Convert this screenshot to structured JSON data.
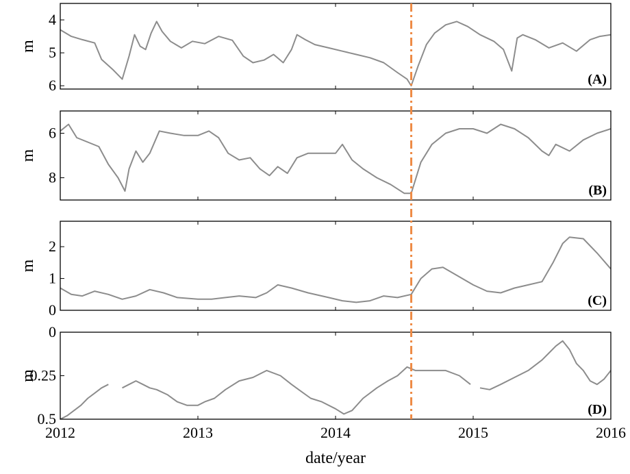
{
  "chart_data": {
    "type": "line",
    "xlabel": "date/year",
    "xlim": [
      2012,
      2016
    ],
    "x_ticks": [
      "2012",
      "2013",
      "2014",
      "2015",
      "2016"
    ],
    "x_tick_values": [
      2012,
      2013,
      2014,
      2015,
      2016
    ],
    "event_line_x": 2014.55,
    "colors": {
      "series": "#8c8c8c",
      "event_line": "#ee8a45",
      "axes": "#000000"
    },
    "panels": [
      {
        "label": "(A)",
        "ylabel": "m",
        "ylim": [
          6.1,
          3.5
        ],
        "y_inverted": true,
        "y_ticks": [
          "4",
          "5",
          "6"
        ],
        "y_tick_values": [
          4,
          5,
          6
        ],
        "series": {
          "x": [
            2012.0,
            2012.08,
            2012.16,
            2012.25,
            2012.3,
            2012.38,
            2012.45,
            2012.5,
            2012.54,
            2012.58,
            2012.62,
            2012.66,
            2012.7,
            2012.74,
            2012.8,
            2012.88,
            2012.96,
            2013.05,
            2013.15,
            2013.25,
            2013.33,
            2013.4,
            2013.48,
            2013.55,
            2013.62,
            2013.68,
            2013.72,
            2013.78,
            2013.85,
            2013.95,
            2014.05,
            2014.15,
            2014.25,
            2014.35,
            2014.45,
            2014.52,
            2014.55,
            2014.6,
            2014.66,
            2014.72,
            2014.8,
            2014.88,
            2014.96,
            2015.05,
            2015.15,
            2015.22,
            2015.28,
            2015.32,
            2015.36,
            2015.45,
            2015.55,
            2015.65,
            2015.75,
            2015.85,
            2015.92,
            2016.0
          ],
          "y": [
            4.3,
            4.5,
            4.6,
            4.7,
            5.2,
            5.5,
            5.8,
            5.1,
            4.45,
            4.8,
            4.9,
            4.4,
            4.05,
            4.35,
            4.65,
            4.85,
            4.65,
            4.72,
            4.5,
            4.62,
            5.1,
            5.3,
            5.22,
            5.05,
            5.3,
            4.9,
            4.45,
            4.6,
            4.75,
            4.85,
            4.95,
            5.05,
            5.15,
            5.3,
            5.6,
            5.8,
            6.0,
            5.4,
            4.75,
            4.4,
            4.15,
            4.05,
            4.2,
            4.45,
            4.65,
            4.9,
            5.55,
            4.55,
            4.45,
            4.6,
            4.85,
            4.7,
            4.95,
            4.6,
            4.5,
            4.45
          ]
        }
      },
      {
        "label": "(B)",
        "ylabel": "m",
        "ylim": [
          9.0,
          5.0
        ],
        "y_inverted": true,
        "y_ticks": [
          "6",
          "8"
        ],
        "y_tick_values": [
          6,
          8
        ],
        "series": {
          "x": [
            2012.0,
            2012.06,
            2012.12,
            2012.2,
            2012.28,
            2012.35,
            2012.42,
            2012.47,
            2012.5,
            2012.55,
            2012.6,
            2012.65,
            2012.72,
            2012.8,
            2012.9,
            2013.0,
            2013.08,
            2013.15,
            2013.22,
            2013.3,
            2013.38,
            2013.45,
            2013.52,
            2013.58,
            2013.65,
            2013.72,
            2013.8,
            2013.9,
            2014.0,
            2014.05,
            2014.12,
            2014.2,
            2014.3,
            2014.4,
            2014.5,
            2014.55,
            2014.62,
            2014.7,
            2014.8,
            2014.9,
            2015.0,
            2015.1,
            2015.2,
            2015.3,
            2015.4,
            2015.5,
            2015.55,
            2015.6,
            2015.7,
            2015.8,
            2015.9,
            2016.0
          ],
          "y": [
            5.9,
            5.6,
            6.2,
            6.4,
            6.6,
            7.4,
            8.0,
            8.6,
            7.6,
            6.8,
            7.3,
            6.9,
            5.9,
            6.0,
            6.1,
            6.1,
            5.9,
            6.2,
            6.9,
            7.2,
            7.1,
            7.6,
            7.9,
            7.5,
            7.8,
            7.1,
            6.9,
            6.9,
            6.9,
            6.5,
            7.2,
            7.6,
            8.0,
            8.3,
            8.7,
            8.7,
            7.3,
            6.5,
            6.0,
            5.8,
            5.8,
            6.0,
            5.6,
            5.8,
            6.2,
            6.8,
            7.0,
            6.5,
            6.8,
            6.3,
            6.0,
            5.8
          ]
        }
      },
      {
        "label": "(C)",
        "ylabel": "m",
        "ylim": [
          0,
          2.8
        ],
        "y_inverted": false,
        "y_ticks": [
          "0",
          "1",
          "2"
        ],
        "y_tick_values": [
          0,
          1,
          2
        ],
        "series": {
          "x": [
            2012.0,
            2012.08,
            2012.16,
            2012.25,
            2012.35,
            2012.45,
            2012.55,
            2012.65,
            2012.75,
            2012.85,
            2013.0,
            2013.1,
            2013.2,
            2013.3,
            2013.42,
            2013.5,
            2013.58,
            2013.68,
            2013.8,
            2013.95,
            2014.05,
            2014.15,
            2014.25,
            2014.35,
            2014.45,
            2014.55,
            2014.62,
            2014.7,
            2014.78,
            2014.88,
            2015.0,
            2015.1,
            2015.2,
            2015.3,
            2015.4,
            2015.5,
            2015.58,
            2015.65,
            2015.7,
            2015.8,
            2015.9,
            2016.0
          ],
          "y": [
            0.7,
            0.5,
            0.45,
            0.6,
            0.5,
            0.35,
            0.45,
            0.65,
            0.55,
            0.4,
            0.35,
            0.35,
            0.4,
            0.45,
            0.4,
            0.55,
            0.8,
            0.7,
            0.55,
            0.4,
            0.3,
            0.25,
            0.3,
            0.45,
            0.4,
            0.5,
            1.0,
            1.3,
            1.35,
            1.1,
            0.8,
            0.6,
            0.55,
            0.7,
            0.8,
            0.9,
            1.5,
            2.1,
            2.3,
            2.25,
            1.8,
            1.3
          ]
        }
      },
      {
        "label": "(D)",
        "ylabel": "m",
        "ylim": [
          0.5,
          0
        ],
        "y_inverted": true,
        "y_ticks": [
          "0",
          "0.25",
          "0.5"
        ],
        "y_tick_values": [
          0,
          0.25,
          0.5
        ],
        "series": {
          "x": [
            2012.0,
            2012.05,
            2012.1,
            2012.15,
            2012.2,
            2012.25,
            2012.3,
            2012.35,
            null,
            2012.45,
            2012.5,
            2012.55,
            2012.6,
            2012.65,
            2012.7,
            2012.78,
            2012.85,
            2012.92,
            2013.0,
            2013.05,
            2013.12,
            2013.2,
            2013.3,
            2013.4,
            2013.5,
            2013.6,
            2013.68,
            2013.75,
            2013.82,
            2013.9,
            2014.0,
            2014.06,
            2014.12,
            2014.2,
            2014.3,
            2014.38,
            2014.45,
            2014.52,
            2014.58,
            2014.65,
            2014.72,
            2014.8,
            2014.9,
            2014.98,
            null,
            2015.05,
            2015.12,
            2015.2,
            2015.3,
            2015.4,
            2015.5,
            2015.55,
            2015.6,
            2015.65,
            2015.7,
            2015.75,
            2015.8,
            2015.85,
            2015.9,
            2015.95,
            2016.0
          ],
          "y": [
            0.5,
            0.48,
            0.45,
            0.42,
            0.38,
            0.35,
            0.32,
            0.3,
            null,
            0.32,
            0.3,
            0.28,
            0.3,
            0.32,
            0.33,
            0.36,
            0.4,
            0.42,
            0.42,
            0.4,
            0.38,
            0.33,
            0.28,
            0.26,
            0.22,
            0.25,
            0.3,
            0.34,
            0.38,
            0.4,
            0.44,
            0.47,
            0.45,
            0.38,
            0.32,
            0.28,
            0.25,
            0.2,
            0.22,
            0.22,
            0.22,
            0.22,
            0.25,
            0.3,
            null,
            0.32,
            0.33,
            0.3,
            0.26,
            0.22,
            0.16,
            0.12,
            0.08,
            0.05,
            0.1,
            0.18,
            0.22,
            0.28,
            0.3,
            0.27,
            0.22
          ]
        }
      }
    ]
  }
}
